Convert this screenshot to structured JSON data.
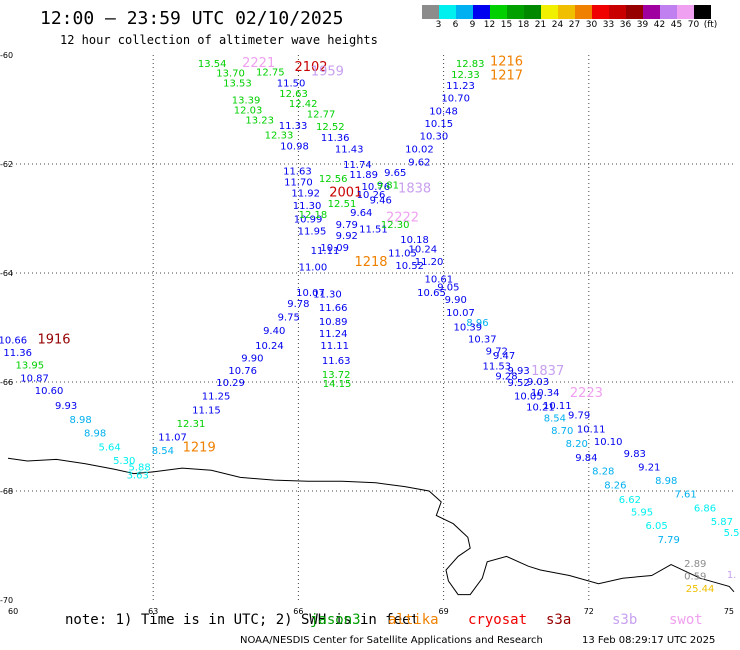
{
  "title": "12:00 – 23:59 UTC 02/10/2025",
  "subtitle": "12 hour collection of altimeter wave heights",
  "legend": {
    "colors": [
      "#8c8c8c",
      "#00f0f0",
      "#00b0f0",
      "#0000f0",
      "#00d000",
      "#00a000",
      "#008800",
      "#f0f000",
      "#f0c000",
      "#f08000",
      "#f00000",
      "#c80000",
      "#960000",
      "#a000a0",
      "#c080f0",
      "#f0a0f0",
      "#000000"
    ],
    "labels": [
      "3",
      "6",
      "9",
      "12",
      "15",
      "18",
      "21",
      "24",
      "27",
      "30",
      "33",
      "36",
      "39",
      "42",
      "45",
      "70",
      "(ft)"
    ]
  },
  "axes": {
    "x_ticks": [
      "60",
      "63",
      "66",
      "69",
      "72",
      "75"
    ],
    "y_ticks": [
      "-60",
      "-62",
      "-64",
      "-66",
      "-68",
      "-70"
    ]
  },
  "footer": {
    "note": "note:  1) Time is in UTC; 2) SWH is in feet",
    "satellites": [
      {
        "name": "jason3",
        "color": "#00a000"
      },
      {
        "name": "altika",
        "color": "#f08000"
      },
      {
        "name": "cryosat",
        "color": "#f00000"
      },
      {
        "name": "s3a",
        "color": "#960000"
      },
      {
        "name": "s3b",
        "color": "#c8a0f0"
      },
      {
        "name": "swot",
        "color": "#f0a0f0"
      }
    ],
    "credit": "NOAA/NESDIS Center for Satellite Applications and Research",
    "timestamp": "13 Feb 08:29:17 UTC 2025"
  },
  "map_data": {
    "labels": [
      {
        "t": "13.54",
        "lon": 64.22,
        "lat": -60.15,
        "c": "#00d000"
      },
      {
        "t": "2221",
        "lon": 65.18,
        "lat": -60.15,
        "c": "#f0a0f0"
      },
      {
        "t": "12.75",
        "lon": 65.42,
        "lat": -60.3,
        "c": "#00d000"
      },
      {
        "t": "13.70",
        "lon": 64.6,
        "lat": -60.32,
        "c": "#00d000"
      },
      {
        "t": "2102",
        "lon": 66.26,
        "lat": -60.22,
        "c": "#c80000"
      },
      {
        "t": "1959",
        "lon": 66.6,
        "lat": -60.3,
        "c": "#c8a0f0"
      },
      {
        "t": "11.50",
        "lon": 65.85,
        "lat": -60.5,
        "c": "#0000f0"
      },
      {
        "t": "13.53",
        "lon": 64.74,
        "lat": -60.5,
        "c": "#00d000"
      },
      {
        "t": "12.63",
        "lon": 65.9,
        "lat": -60.7,
        "c": "#00d000"
      },
      {
        "t": "13.39",
        "lon": 64.92,
        "lat": -60.82,
        "c": "#00d000"
      },
      {
        "t": "12.42",
        "lon": 66.1,
        "lat": -60.88,
        "c": "#00d000"
      },
      {
        "t": "12.03",
        "lon": 64.96,
        "lat": -61.0,
        "c": "#00d000"
      },
      {
        "t": "12.77",
        "lon": 66.47,
        "lat": -61.07,
        "c": "#00d000"
      },
      {
        "t": "13.23",
        "lon": 65.2,
        "lat": -61.18,
        "c": "#00d000"
      },
      {
        "t": "11.33",
        "lon": 65.89,
        "lat": -61.28,
        "c": "#0000f0"
      },
      {
        "t": "12.52",
        "lon": 66.66,
        "lat": -61.3,
        "c": "#00d000"
      },
      {
        "t": "12.33",
        "lon": 65.6,
        "lat": -61.46,
        "c": "#00d000"
      },
      {
        "t": "11.36",
        "lon": 66.76,
        "lat": -61.5,
        "c": "#0000f0"
      },
      {
        "t": "10.98",
        "lon": 65.92,
        "lat": -61.66,
        "c": "#0000f0"
      },
      {
        "t": "11.43",
        "lon": 67.05,
        "lat": -61.72,
        "c": "#0000f0"
      },
      {
        "t": "11.74",
        "lon": 67.22,
        "lat": -62.0,
        "c": "#0000f0"
      },
      {
        "t": "11.63",
        "lon": 65.98,
        "lat": -62.12,
        "c": "#0000f0"
      },
      {
        "t": "11.89",
        "lon": 67.35,
        "lat": -62.18,
        "c": "#0000f0"
      },
      {
        "t": "12.56",
        "lon": 66.72,
        "lat": -62.26,
        "c": "#00d000"
      },
      {
        "t": "11.70",
        "lon": 66.0,
        "lat": -62.32,
        "c": "#0000f0"
      },
      {
        "t": "10.76",
        "lon": 67.6,
        "lat": -62.4,
        "c": "#0000f0"
      },
      {
        "t": "2001",
        "lon": 66.98,
        "lat": -62.52,
        "c": "#c80000"
      },
      {
        "t": "11.92",
        "lon": 66.15,
        "lat": -62.52,
        "c": "#0000f0"
      },
      {
        "t": "11.30",
        "lon": 66.18,
        "lat": -62.75,
        "c": "#0000f0"
      },
      {
        "t": "12.51",
        "lon": 66.9,
        "lat": -62.72,
        "c": "#00d000"
      },
      {
        "t": "1838",
        "lon": 68.4,
        "lat": -62.45,
        "c": "#c8a0f0"
      },
      {
        "t": "10.99",
        "lon": 66.2,
        "lat": -63.0,
        "c": "#0000f0"
      },
      {
        "t": "2222",
        "lon": 68.15,
        "lat": -62.98,
        "c": "#f0a0f0"
      },
      {
        "t": "11.95",
        "lon": 66.28,
        "lat": -63.22,
        "c": "#0000f0"
      },
      {
        "t": "9.92",
        "lon": 67.0,
        "lat": -63.3,
        "c": "#0000f0"
      },
      {
        "t": "11.51",
        "lon": 67.55,
        "lat": -63.18,
        "c": "#0000f0"
      },
      {
        "t": "10.18",
        "lon": 68.4,
        "lat": -63.38,
        "c": "#0000f0"
      },
      {
        "t": "12.18",
        "lon": 66.3,
        "lat": -62.92,
        "c": "#00d000"
      },
      {
        "t": "11.11",
        "lon": 66.55,
        "lat": -63.58,
        "c": "#0000f0"
      },
      {
        "t": "11.05",
        "lon": 68.15,
        "lat": -63.62,
        "c": "#0000f0"
      },
      {
        "t": "1218",
        "lon": 67.5,
        "lat": -63.8,
        "c": "#f08000"
      },
      {
        "t": "10.24",
        "lon": 68.57,
        "lat": -63.55,
        "c": "#0000f0"
      },
      {
        "t": "11.20",
        "lon": 68.7,
        "lat": -63.78,
        "c": "#0000f0"
      },
      {
        "t": "10.07",
        "lon": 66.25,
        "lat": -64.35,
        "c": "#0000f0"
      },
      {
        "t": "11.30",
        "lon": 66.6,
        "lat": -64.38,
        "c": "#0000f0"
      },
      {
        "t": "10.61",
        "lon": 68.9,
        "lat": -64.1,
        "c": "#0000f0"
      },
      {
        "t": "9.78",
        "lon": 66.0,
        "lat": -64.55,
        "c": "#0000f0"
      },
      {
        "t": "11.66",
        "lon": 66.72,
        "lat": -64.62,
        "c": "#0000f0"
      },
      {
        "t": "10.89",
        "lon": 66.72,
        "lat": -64.88,
        "c": "#0000f0"
      },
      {
        "t": "9.75",
        "lon": 65.8,
        "lat": -64.8,
        "c": "#0000f0"
      },
      {
        "t": "9.40",
        "lon": 65.5,
        "lat": -65.05,
        "c": "#0000f0"
      },
      {
        "t": "11.24",
        "lon": 66.72,
        "lat": -65.1,
        "c": "#0000f0"
      },
      {
        "t": "10.24",
        "lon": 65.4,
        "lat": -65.32,
        "c": "#0000f0"
      },
      {
        "t": "11.11",
        "lon": 66.75,
        "lat": -65.32,
        "c": "#0000f0"
      },
      {
        "t": "9.90",
        "lon": 65.05,
        "lat": -65.55,
        "c": "#0000f0"
      },
      {
        "t": "11.63",
        "lon": 66.78,
        "lat": -65.6,
        "c": "#0000f0"
      },
      {
        "t": "10.76",
        "lon": 64.85,
        "lat": -65.78,
        "c": "#0000f0"
      },
      {
        "t": "13.72",
        "lon": 66.78,
        "lat": -65.85,
        "c": "#00d000"
      },
      {
        "t": "10.29",
        "lon": 64.6,
        "lat": -66.0,
        "c": "#0000f0"
      },
      {
        "t": "14.15",
        "lon": 66.8,
        "lat": -66.02,
        "c": "#00d000"
      },
      {
        "t": "11.25",
        "lon": 64.3,
        "lat": -66.25,
        "c": "#0000f0"
      },
      {
        "t": "11.15",
        "lon": 64.1,
        "lat": -66.5,
        "c": "#0000f0"
      },
      {
        "t": "12.31",
        "lon": 63.78,
        "lat": -66.75,
        "c": "#00d000"
      },
      {
        "t": "11.07",
        "lon": 63.4,
        "lat": -67.0,
        "c": "#0000f0"
      },
      {
        "t": "1219",
        "lon": 63.95,
        "lat": -67.2,
        "c": "#f08000"
      },
      {
        "t": "8.54",
        "lon": 63.2,
        "lat": -67.25,
        "c": "#00b0f0"
      },
      {
        "t": "5.88",
        "lon": 62.72,
        "lat": -67.55,
        "c": "#00f0f0"
      },
      {
        "t": "3.63",
        "lon": 62.68,
        "lat": -67.7,
        "c": "#00f0f0"
      },
      {
        "t": "10.66",
        "lon": 60.1,
        "lat": -65.22,
        "c": "#0000f0"
      },
      {
        "t": "1916",
        "lon": 60.95,
        "lat": -65.22,
        "c": "#960000"
      },
      {
        "t": "11.36",
        "lon": 60.2,
        "lat": -65.45,
        "c": "#0000f0"
      },
      {
        "t": "13.95",
        "lon": 60.45,
        "lat": -65.68,
        "c": "#00d000"
      },
      {
        "t": "10.87",
        "lon": 60.55,
        "lat": -65.92,
        "c": "#0000f0"
      },
      {
        "t": "10.60",
        "lon": 60.85,
        "lat": -66.15,
        "c": "#0000f0"
      },
      {
        "t": "9.93",
        "lon": 61.2,
        "lat": -66.42,
        "c": "#0000f0"
      },
      {
        "t": "8.98",
        "lon": 61.5,
        "lat": -66.68,
        "c": "#00b0f0"
      },
      {
        "t": "8.98",
        "lon": 61.8,
        "lat": -66.93,
        "c": "#00b0f0"
      },
      {
        "t": "5.64",
        "lon": 62.1,
        "lat": -67.18,
        "c": "#00f0f0"
      },
      {
        "t": "5.30",
        "lon": 62.4,
        "lat": -67.43,
        "c": "#00f0f0"
      },
      {
        "t": "12.83",
        "lon": 69.55,
        "lat": -60.15,
        "c": "#00d000"
      },
      {
        "t": "1216",
        "lon": 70.3,
        "lat": -60.12,
        "c": "#f08000"
      },
      {
        "t": "12.33",
        "lon": 69.45,
        "lat": -60.35,
        "c": "#00d000"
      },
      {
        "t": "1217",
        "lon": 70.3,
        "lat": -60.38,
        "c": "#f08000"
      },
      {
        "t": "11.23",
        "lon": 69.35,
        "lat": -60.55,
        "c": "#0000f0"
      },
      {
        "t": "10.70",
        "lon": 69.25,
        "lat": -60.78,
        "c": "#0000f0"
      },
      {
        "t": "10.48",
        "lon": 69.0,
        "lat": -61.02,
        "c": "#0000f0"
      },
      {
        "t": "10.15",
        "lon": 68.9,
        "lat": -61.25,
        "c": "#0000f0"
      },
      {
        "t": "10.30",
        "lon": 68.8,
        "lat": -61.48,
        "c": "#0000f0"
      },
      {
        "t": "10.02",
        "lon": 68.5,
        "lat": -61.72,
        "c": "#0000f0"
      },
      {
        "t": "9.62",
        "lon": 68.5,
        "lat": -61.95,
        "c": "#0000f0"
      },
      {
        "t": "9.65",
        "lon": 68.0,
        "lat": -62.15,
        "c": "#0000f0"
      },
      {
        "t": "9.81",
        "lon": 67.85,
        "lat": -62.38,
        "c": "#00d000"
      },
      {
        "t": "10.26",
        "lon": 67.5,
        "lat": -62.55,
        "c": "#0000f0"
      },
      {
        "t": "9.46",
        "lon": 67.7,
        "lat": -62.65,
        "c": "#0000f0"
      },
      {
        "t": "9.64",
        "lon": 67.3,
        "lat": -62.88,
        "c": "#0000f0"
      },
      {
        "t": "9.79",
        "lon": 67.0,
        "lat": -63.1,
        "c": "#0000f0"
      },
      {
        "t": "12.30",
        "lon": 68.0,
        "lat": -63.1,
        "c": "#00d000"
      },
      {
        "t": "10.09",
        "lon": 66.75,
        "lat": -63.52,
        "c": "#0000f0"
      },
      {
        "t": "11.00",
        "lon": 66.3,
        "lat": -63.88,
        "c": "#0000f0"
      },
      {
        "t": "10.52",
        "lon": 68.3,
        "lat": -63.85,
        "c": "#0000f0"
      },
      {
        "t": "10.65",
        "lon": 68.75,
        "lat": -64.35,
        "c": "#0000f0"
      },
      {
        "t": "9.05",
        "lon": 69.1,
        "lat": -64.25,
        "c": "#0000f0"
      },
      {
        "t": "9.90",
        "lon": 69.25,
        "lat": -64.48,
        "c": "#0000f0"
      },
      {
        "t": "10.07",
        "lon": 69.35,
        "lat": -64.72,
        "c": "#0000f0"
      },
      {
        "t": "8.96",
        "lon": 69.7,
        "lat": -64.9,
        "c": "#00b0f0"
      },
      {
        "t": "10.39",
        "lon": 69.5,
        "lat": -64.98,
        "c": "#0000f0"
      },
      {
        "t": "10.37",
        "lon": 69.8,
        "lat": -65.2,
        "c": "#0000f0"
      },
      {
        "t": "9.72",
        "lon": 70.1,
        "lat": -65.42,
        "c": "#0000f0"
      },
      {
        "t": "9.47",
        "lon": 70.25,
        "lat": -65.5,
        "c": "#0000f0"
      },
      {
        "t": "11.53",
        "lon": 70.1,
        "lat": -65.7,
        "c": "#0000f0"
      },
      {
        "t": "9.93",
        "lon": 70.55,
        "lat": -65.78,
        "c": "#0000f0"
      },
      {
        "t": "1837",
        "lon": 71.15,
        "lat": -65.8,
        "c": "#c8a0f0"
      },
      {
        "t": "9.28",
        "lon": 70.3,
        "lat": -65.88,
        "c": "#0000f0"
      },
      {
        "t": "9.52",
        "lon": 70.55,
        "lat": -66.0,
        "c": "#0000f0"
      },
      {
        "t": "9.03",
        "lon": 70.95,
        "lat": -65.98,
        "c": "#0000f0"
      },
      {
        "t": "10.34",
        "lon": 71.1,
        "lat": -66.18,
        "c": "#0000f0"
      },
      {
        "t": "2223",
        "lon": 71.95,
        "lat": -66.2,
        "c": "#f0a0f0"
      },
      {
        "t": "10.05",
        "lon": 70.75,
        "lat": -66.25,
        "c": "#0000f0"
      },
      {
        "t": "10.11",
        "lon": 71.35,
        "lat": -66.42,
        "c": "#0000f0"
      },
      {
        "t": "10.21",
        "lon": 71.0,
        "lat": -66.45,
        "c": "#0000f0"
      },
      {
        "t": "9.79",
        "lon": 71.8,
        "lat": -66.6,
        "c": "#0000f0"
      },
      {
        "t": "8.54",
        "lon": 71.3,
        "lat": -66.65,
        "c": "#00b0f0"
      },
      {
        "t": "10.11",
        "lon": 72.05,
        "lat": -66.85,
        "c": "#0000f0"
      },
      {
        "t": "8.70",
        "lon": 71.45,
        "lat": -66.88,
        "c": "#00b0f0"
      },
      {
        "t": "10.10",
        "lon": 72.4,
        "lat": -67.08,
        "c": "#0000f0"
      },
      {
        "t": "8.20",
        "lon": 71.75,
        "lat": -67.12,
        "c": "#00b0f0"
      },
      {
        "t": "9.83",
        "lon": 72.95,
        "lat": -67.3,
        "c": "#0000f0"
      },
      {
        "t": "9.84",
        "lon": 71.95,
        "lat": -67.38,
        "c": "#0000f0"
      },
      {
        "t": "9.21",
        "lon": 73.25,
        "lat": -67.55,
        "c": "#0000f0"
      },
      {
        "t": "8.28",
        "lon": 72.3,
        "lat": -67.62,
        "c": "#00b0f0"
      },
      {
        "t": "8.98",
        "lon": 73.6,
        "lat": -67.8,
        "c": "#00b0f0"
      },
      {
        "t": "8.26",
        "lon": 72.55,
        "lat": -67.88,
        "c": "#00b0f0"
      },
      {
        "t": "7.61",
        "lon": 74.0,
        "lat": -68.05,
        "c": "#00b0f0"
      },
      {
        "t": "6.62",
        "lon": 72.85,
        "lat": -68.15,
        "c": "#00f0f0"
      },
      {
        "t": "6.86",
        "lon": 74.4,
        "lat": -68.3,
        "c": "#00f0f0"
      },
      {
        "t": "5.95",
        "lon": 73.1,
        "lat": -68.38,
        "c": "#00f0f0"
      },
      {
        "t": "5.87",
        "lon": 74.75,
        "lat": -68.55,
        "c": "#00f0f0"
      },
      {
        "t": "6.05",
        "lon": 73.4,
        "lat": -68.62,
        "c": "#00f0f0"
      },
      {
        "t": "5.5",
        "lon": 74.95,
        "lat": -68.75,
        "c": "#00f0f0"
      },
      {
        "t": "7.79",
        "lon": 73.65,
        "lat": -68.88,
        "c": "#00b0f0"
      },
      {
        "t": "2.89",
        "lon": 74.2,
        "lat": -69.32,
        "c": "#8c8c8c"
      },
      {
        "t": "1.",
        "lon": 74.95,
        "lat": -69.52,
        "c": "#c8a0f0"
      },
      {
        "t": "0.59",
        "lon": 74.2,
        "lat": -69.55,
        "c": "#8c8c8c"
      },
      {
        "t": "25.44",
        "lon": 74.3,
        "lat": -69.78,
        "c": "#f0c000"
      }
    ]
  }
}
